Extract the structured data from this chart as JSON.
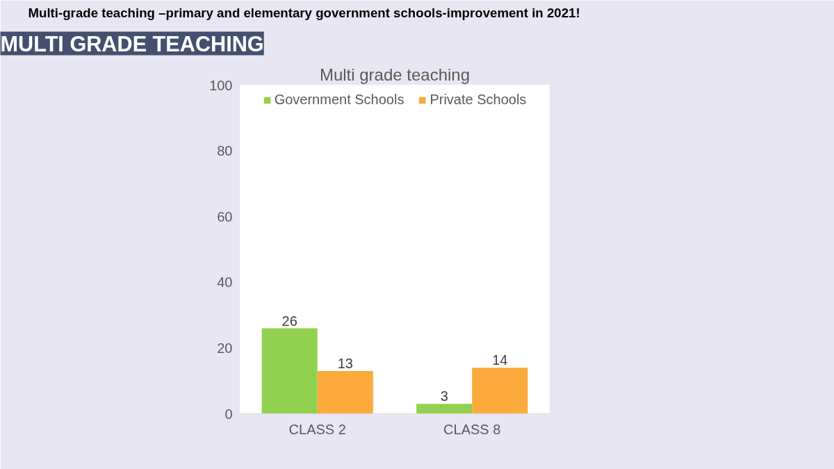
{
  "chart_data": {
    "type": "bar",
    "title": "Multi grade teaching",
    "annotations": [
      "Multi-grade teaching –primary and elementary government schools-improvement in 2021!",
      "MULTI GRADE TEACHING"
    ],
    "categories": [
      "CLASS 2",
      "CLASS 8"
    ],
    "series": [
      {
        "name": "Government Schools",
        "color": "#92d050",
        "values": [
          26,
          3
        ]
      },
      {
        "name": "Private Schools",
        "color": "#fbaa3c",
        "values": [
          13,
          14
        ]
      }
    ],
    "ylim": [
      0,
      100
    ],
    "yticks": [
      0,
      20,
      40,
      60,
      80,
      100
    ],
    "grid": false,
    "legend": "top",
    "data_labels": true
  }
}
